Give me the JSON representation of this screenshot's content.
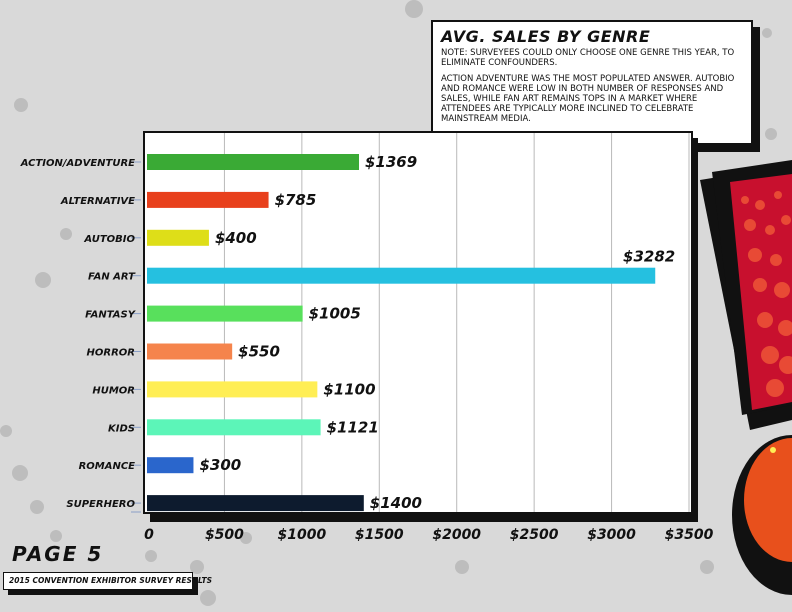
{
  "note": {
    "title": "AVG. SALES BY GENRE",
    "line1": "NOTE: SURVEYEES COULD ONLY CHOOSE ONE GENRE THIS YEAR, TO ELIMINATE CONFOUNDERS.",
    "line2": "ACTION ADVENTURE WAS THE MOST POPULATED ANSWER. AUTOBIO AND ROMANCE WERE LOW IN BOTH NUMBER OF RESPONSES AND SALES, WHILE FAN ART REMAINS TOPS IN A MARKET WHERE ATTENDEES ARE TYPICALLY MORE INCLINED TO CELEBRATE MAINSTREAM MEDIA."
  },
  "page_label": "PAGE 5",
  "footer": "2015 CONVENTION EXHIBITOR SURVEY RESULTS",
  "chart_data": {
    "type": "bar",
    "orientation": "horizontal",
    "title": "AVG. SALES BY GENRE",
    "categories": [
      "Action/Adventure",
      "Alternative",
      "Autobio",
      "Fan Art",
      "Fantasy",
      "Horror",
      "Humor",
      "Kids",
      "Romance",
      "Superhero"
    ],
    "values": [
      1369,
      785,
      400,
      3282,
      1005,
      550,
      1100,
      1121,
      300,
      1400
    ],
    "value_labels": [
      "$1369",
      "$785",
      "$400",
      "$3282",
      "$1005",
      "$550",
      "$1100",
      "$1121",
      "$300",
      "$1400"
    ],
    "colors": [
      "#3aaa35",
      "#e8401c",
      "#dede18",
      "#25c0e0",
      "#58e05c",
      "#f5844c",
      "#ffee55",
      "#5cf5b8",
      "#2a66cc",
      "#0d1b2e"
    ],
    "xlim": [
      0,
      3500
    ],
    "xticks": [
      0,
      500,
      1000,
      1500,
      2000,
      2500,
      3000,
      3500
    ],
    "xtick_labels": [
      "0",
      "$500",
      "$1000",
      "$1500",
      "$2000",
      "$2500",
      "$3000",
      "$3500"
    ],
    "grid": true
  },
  "decor_colors": {
    "background": "#d9d9d9",
    "dots": "#bdbdbd",
    "exclaim_red": "#c8102e",
    "exclaim_orange": "#e8501c"
  }
}
